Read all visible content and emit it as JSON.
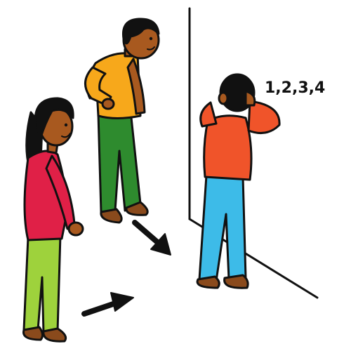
{
  "scene": {
    "count_label": "1,2,3,4"
  },
  "colors": {
    "outline": "#111111",
    "skin": "#a8591f",
    "hair": "#111111",
    "girl_shirt": "#e02047",
    "girl_pants": "#9ed23c",
    "boy_shirt": "#f7a81b",
    "boy_pants": "#2e8b2e",
    "seeker_shirt": "#f0542a",
    "seeker_pants": "#3dbbe8",
    "shoe": "#8a4a1c",
    "background": "#ffffff"
  },
  "icons": [
    "arrow-right-icon",
    "arrow-down-right-icon"
  ]
}
